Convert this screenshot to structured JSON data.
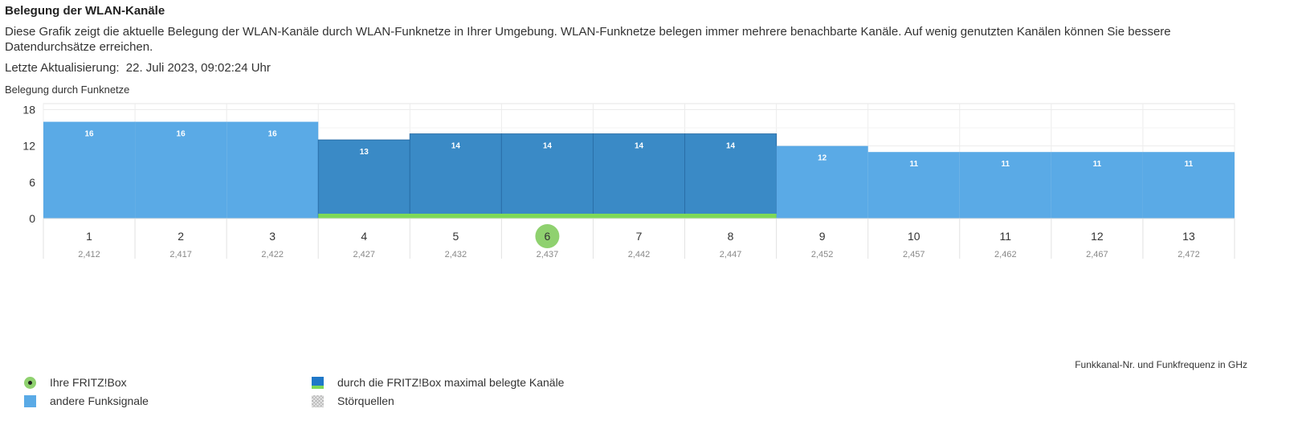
{
  "header": {
    "title": "Belegung der WLAN-Kanäle",
    "description": "Diese Grafik zeigt die aktuelle Belegung der WLAN-Kanäle durch WLAN-Funknetze in Ihrer Umgebung. WLAN-Funknetze belegen immer mehrere benachbarte Kanäle. Auf wenig genutzten Kanälen können Sie bessere Datendurchsätze erreichen.",
    "last_update_label": "Letzte Aktualisierung:",
    "last_update_value": "22. Juli 2023, 09:02:24 Uhr"
  },
  "chart_data": {
    "type": "bar",
    "title": "Belegung durch Funknetze",
    "xlabel": "Funkkanal-Nr. und Funkfrequenz in GHz",
    "ylabel": "",
    "categories": [
      "1",
      "2",
      "3",
      "4",
      "5",
      "6",
      "7",
      "8",
      "9",
      "10",
      "11",
      "12",
      "13"
    ],
    "frequencies": [
      "2,412",
      "2,417",
      "2,422",
      "2,427",
      "2,432",
      "2,437",
      "2,442",
      "2,447",
      "2,452",
      "2,457",
      "2,462",
      "2,467",
      "2,472"
    ],
    "values": [
      16,
      16,
      16,
      13,
      14,
      14,
      14,
      14,
      12,
      11,
      11,
      11,
      11
    ],
    "fritzbox_max_channels": [
      "4",
      "5",
      "6",
      "7",
      "8"
    ],
    "fritzbox_channel": "6",
    "yticks": [
      0,
      6,
      12,
      18
    ],
    "ylim": [
      0,
      19
    ],
    "grid": true,
    "colors": {
      "other": "#5aaae6",
      "fritzbox_max": "#3a8ac6",
      "fritzbox_line": "#7ed957",
      "fritzbox_channel": "#8fd16f"
    }
  },
  "legend": {
    "fritzbox": "Ihre FRITZ!Box",
    "other": "andere Funksignale",
    "max_channels": "durch die FRITZ!Box maximal belegte Kanäle",
    "noise": "Störquellen"
  }
}
